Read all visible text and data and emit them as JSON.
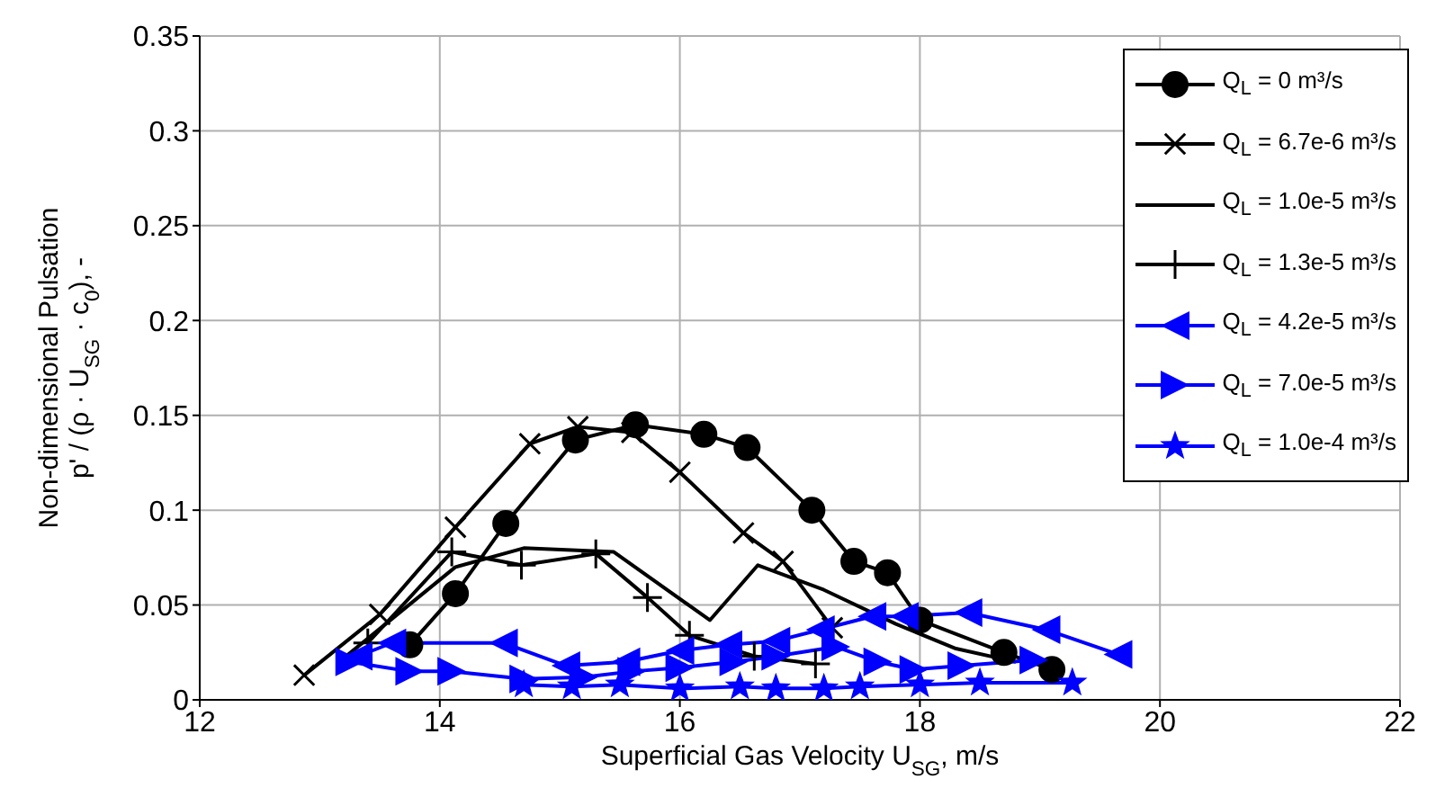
{
  "chart_data": {
    "type": "line",
    "xlabel": "Superficial Gas Velocity U$_{SG}$, m/s",
    "ylabel": "Non-dimensional Pulsation\np' / (ρ · U$_{SG}$ · c$_{0}$), -",
    "xlim": [
      12,
      22
    ],
    "xticks": [
      12,
      14,
      16,
      18,
      20,
      22
    ],
    "ylim": [
      0,
      0.35
    ],
    "yticks": [
      0,
      0.05,
      0.1,
      0.15,
      0.2,
      0.25,
      0.3,
      0.35
    ],
    "grid": true,
    "legend": "top right",
    "line_style": "solid",
    "series": [
      {
        "name": "Q$_{L}$ = 0 m³/s",
        "color": "#000000",
        "marker": "circle",
        "x": [
          13.75,
          14.13,
          14.55,
          15.13,
          15.63,
          16.2,
          16.56,
          17.1,
          17.45,
          17.73,
          18.0,
          18.7,
          19.1
        ],
        "values": [
          0.029,
          0.056,
          0.093,
          0.137,
          0.145,
          0.14,
          0.133,
          0.1,
          0.073,
          0.067,
          0.042,
          0.025,
          0.016
        ]
      },
      {
        "name": "Q$_{L}$ = 6.7e-6 m³/s",
        "color": "#000000",
        "marker": "cross",
        "x": [
          12.87,
          13.5,
          14.13,
          14.75,
          15.15,
          15.6,
          16.0,
          16.53,
          16.86,
          17.27
        ],
        "values": [
          0.013,
          0.045,
          0.091,
          0.135,
          0.144,
          0.141,
          0.12,
          0.088,
          0.073,
          0.038
        ]
      },
      {
        "name": "Q$_{L}$ = 1.0e-5 m³/s",
        "color": "#000000",
        "marker": "none",
        "x": [
          13.2,
          14.13,
          14.7,
          15.45,
          16.25,
          16.65,
          17.2,
          17.8,
          18.3,
          18.8
        ],
        "values": [
          0.022,
          0.07,
          0.08,
          0.078,
          0.042,
          0.071,
          0.058,
          0.04,
          0.027,
          0.02
        ]
      },
      {
        "name": "Q$_{L}$ = 1.3e-5 m³/s",
        "color": "#000000",
        "marker": "plus",
        "x": [
          13.4,
          14.1,
          14.68,
          15.3,
          15.73,
          16.08,
          16.62,
          17.13
        ],
        "values": [
          0.03,
          0.078,
          0.071,
          0.077,
          0.054,
          0.034,
          0.023,
          0.019
        ]
      },
      {
        "name": "Q$_{L}$ = 4.2e-5 m³/s",
        "color": "#0000ff",
        "marker": "triangle-left",
        "x": [
          13.32,
          13.6,
          14.53,
          15.05,
          15.55,
          16.0,
          16.4,
          16.8,
          17.17,
          17.6,
          17.87,
          18.4,
          19.05,
          19.65
        ],
        "values": [
          0.023,
          0.03,
          0.03,
          0.018,
          0.02,
          0.026,
          0.029,
          0.031,
          0.037,
          0.044,
          0.044,
          0.046,
          0.037,
          0.024
        ]
      },
      {
        "name": "Q$_{L}$ = 7.0e-5 m³/s",
        "color": "#0000ff",
        "marker": "triangle-right",
        "x": [
          13.25,
          13.75,
          14.1,
          14.7,
          15.2,
          15.6,
          16.0,
          16.45,
          16.8,
          17.3,
          17.65,
          17.95,
          18.35,
          18.95
        ],
        "values": [
          0.02,
          0.015,
          0.015,
          0.011,
          0.012,
          0.015,
          0.017,
          0.02,
          0.023,
          0.028,
          0.02,
          0.016,
          0.018,
          0.021
        ]
      },
      {
        "name": "Q$_{L}$ = 1.0e-4 m³/s",
        "color": "#0000ff",
        "marker": "star",
        "x": [
          14.7,
          15.1,
          15.5,
          16.0,
          16.5,
          16.8,
          17.2,
          17.5,
          18.0,
          18.5,
          19.27
        ],
        "values": [
          0.008,
          0.007,
          0.008,
          0.006,
          0.007,
          0.006,
          0.006,
          0.007,
          0.008,
          0.009,
          0.009
        ]
      }
    ]
  }
}
